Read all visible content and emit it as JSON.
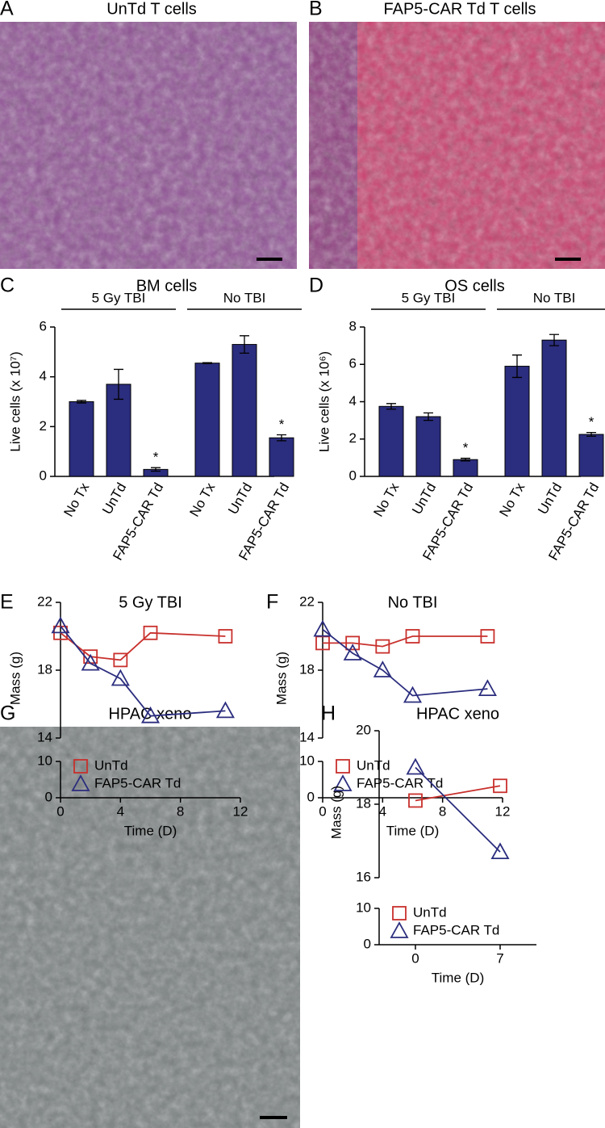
{
  "image_panels": [
    {
      "letter": "A",
      "title": "UnTd T cells"
    },
    {
      "letter": "B",
      "title": "FAP5-CAR Td T cells"
    },
    {
      "letter": "G",
      "title": "HPAC xeno"
    }
  ],
  "chart_data": [
    {
      "type": "bar",
      "letter": "C",
      "title": "BM cells",
      "ylabel": "Live cells (x 10⁷)",
      "categories": [
        "No Tx",
        "UnTd",
        "FAP5-CAR Td",
        "No Tx",
        "UnTd",
        "FAP5-CAR Td"
      ],
      "values": [
        3.0,
        3.7,
        0.28,
        4.55,
        5.3,
        1.55
      ],
      "errors": [
        0.05,
        0.6,
        0.07,
        0.02,
        0.35,
        0.12
      ],
      "groups": [
        {
          "name": "5 Gy TBI",
          "start": 0,
          "end": 2
        },
        {
          "name": "No TBI",
          "start": 3,
          "end": 5
        }
      ],
      "annotations": [
        {
          "text": "*",
          "index": 2
        },
        {
          "text": "*",
          "index": 5
        }
      ],
      "color": "#2b2d7e",
      "ylim": [
        0,
        6
      ],
      "yticks": [
        0,
        2,
        4,
        6
      ]
    },
    {
      "type": "bar",
      "letter": "D",
      "title": "OS cells",
      "ylabel": "Live cells (x 10⁶)",
      "categories": [
        "No Tx",
        "UnTd",
        "FAP5-CAR Td",
        "No Tx",
        "UnTd",
        "FAP5-CAR Td"
      ],
      "values": [
        3.75,
        3.2,
        0.9,
        5.9,
        7.3,
        2.25
      ],
      "errors": [
        0.15,
        0.2,
        0.07,
        0.6,
        0.3,
        0.1
      ],
      "groups": [
        {
          "name": "5 Gy TBI",
          "start": 0,
          "end": 2
        },
        {
          "name": "No TBI",
          "start": 3,
          "end": 5
        }
      ],
      "annotations": [
        {
          "text": "*",
          "index": 2
        },
        {
          "text": "*",
          "index": 5
        }
      ],
      "color": "#2b2d7e",
      "ylim": [
        0,
        8
      ],
      "yticks": [
        0,
        2,
        4,
        6,
        8
      ]
    },
    {
      "type": "line",
      "letter": "E",
      "title": "5 Gy TBI",
      "xlabel": "Time (D)",
      "ylabel": "Mass (g)",
      "x": [
        0,
        2,
        4,
        6,
        11
      ],
      "series": [
        {
          "name": "UnTd",
          "color": "#c8302c",
          "marker": "square",
          "values": [
            20.2,
            18.8,
            18.6,
            20.2,
            20.0
          ]
        },
        {
          "name": "FAP5-CAR Td",
          "color": "#2b2d7e",
          "marker": "triangle",
          "values": [
            20.6,
            18.4,
            17.5,
            15.3,
            15.6
          ]
        }
      ],
      "xlim": [
        0,
        12
      ],
      "xticks": [
        0,
        4,
        8,
        12
      ],
      "ylim": [
        14,
        22
      ],
      "yticks": [
        14,
        18,
        22
      ],
      "lower_ylim": [
        0,
        10
      ],
      "lower_yticks": [
        0,
        10
      ]
    },
    {
      "type": "line",
      "letter": "F",
      "title": "No TBI",
      "xlabel": "Time (D)",
      "ylabel": "Mass (g)",
      "x": [
        0,
        2,
        4,
        6,
        11
      ],
      "series": [
        {
          "name": "UnTd",
          "color": "#c8302c",
          "marker": "square",
          "values": [
            19.6,
            19.6,
            19.4,
            20.0,
            20.0
          ]
        },
        {
          "name": "FAP5-CAR Td",
          "color": "#2b2d7e",
          "marker": "triangle",
          "values": [
            20.4,
            19.0,
            18.0,
            16.5,
            16.9
          ]
        }
      ],
      "xlim": [
        0,
        12
      ],
      "xticks": [
        0,
        4,
        8,
        12
      ],
      "ylim": [
        14,
        22
      ],
      "yticks": [
        14,
        18,
        22
      ],
      "lower_ylim": [
        0,
        10
      ],
      "lower_yticks": [
        0,
        10
      ]
    },
    {
      "type": "line",
      "letter": "H",
      "title": "HPAC xeno",
      "xlabel": "Time (D)",
      "ylabel": "Mass (g)",
      "x": [
        0,
        7
      ],
      "series": [
        {
          "name": "UnTd",
          "color": "#c8302c",
          "marker": "square",
          "values": [
            18.1,
            18.5
          ]
        },
        {
          "name": "FAP5-CAR Td",
          "color": "#2b2d7e",
          "marker": "triangle",
          "values": [
            19.0,
            16.7
          ]
        }
      ],
      "xlim": [
        -3,
        10
      ],
      "xticks": [
        0,
        7
      ],
      "ylim": [
        16,
        20
      ],
      "yticks": [
        16,
        18,
        20
      ],
      "lower_ylim": [
        0,
        10
      ],
      "lower_yticks": [
        0,
        10
      ]
    }
  ]
}
